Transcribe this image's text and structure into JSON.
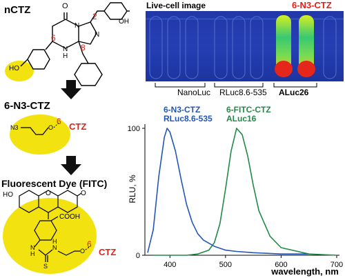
{
  "left": {
    "title_nctz": "nCTZ",
    "ring_numbers": {
      "n2": "2",
      "n6": "6",
      "n8": "8"
    },
    "atoms": {
      "o_top": "O",
      "n_a": "N",
      "n_b": "N",
      "n_h": "N",
      "h": "H",
      "oh_right": "OH",
      "ho_left": "HO"
    },
    "title_n3": "6-N3-CTZ",
    "n3_group": "N3",
    "n3_o": "O",
    "n3_six": "6",
    "n3_ctz": "CTZ",
    "title_dye": "Fluorescent Dye (FITC)",
    "fitc": {
      "ho": "HO",
      "o_mid": "O",
      "o_right": "O",
      "cooh": "COOH",
      "nh_left": "N",
      "h_left": "H",
      "nh_right": "N",
      "h_right": "H",
      "s": "S",
      "o_end": "O",
      "six": "6",
      "ctz": "CTZ"
    }
  },
  "image_panel": {
    "title": "Live-cell image",
    "tag": "6-N3-CTZ",
    "labels": [
      "NanoLuc",
      "RLuc8.6-535",
      "ALuc26"
    ]
  },
  "chart_data": {
    "type": "line",
    "xlabel": "wavelength, nm",
    "ylabel": "RLU, %",
    "xlim": [
      355,
      705
    ],
    "ylim": [
      0,
      100
    ],
    "x_ticks": [
      400,
      500,
      600,
      700
    ],
    "y_ticks": [
      0,
      100
    ],
    "series": [
      {
        "name": "6-N3-CTZ RLuc8.6-535",
        "legend_line1": "6-N3-CTZ",
        "legend_line2": "RLuc8.6-535",
        "color": "#2255b5",
        "x": [
          360,
          370,
          380,
          390,
          395,
          400,
          410,
          420,
          430,
          440,
          450,
          460,
          480,
          500,
          520,
          550,
          600,
          650
        ],
        "y": [
          2,
          20,
          62,
          93,
          100,
          97,
          82,
          60,
          40,
          26,
          17,
          12,
          7,
          4,
          3,
          2,
          1,
          1
        ]
      },
      {
        "name": "6-FITC-CTZ ALuc16",
        "legend_line1": "6-FITC-CTZ",
        "legend_line2": "ALuc16",
        "color": "#1f8a45",
        "x": [
          370,
          400,
          430,
          450,
          470,
          480,
          490,
          500,
          510,
          520,
          530,
          540,
          550,
          560,
          580,
          600,
          650,
          700
        ],
        "y": [
          0,
          0,
          0,
          1,
          4,
          10,
          25,
          52,
          82,
          100,
          95,
          78,
          55,
          35,
          15,
          6,
          1,
          0
        ]
      }
    ]
  }
}
